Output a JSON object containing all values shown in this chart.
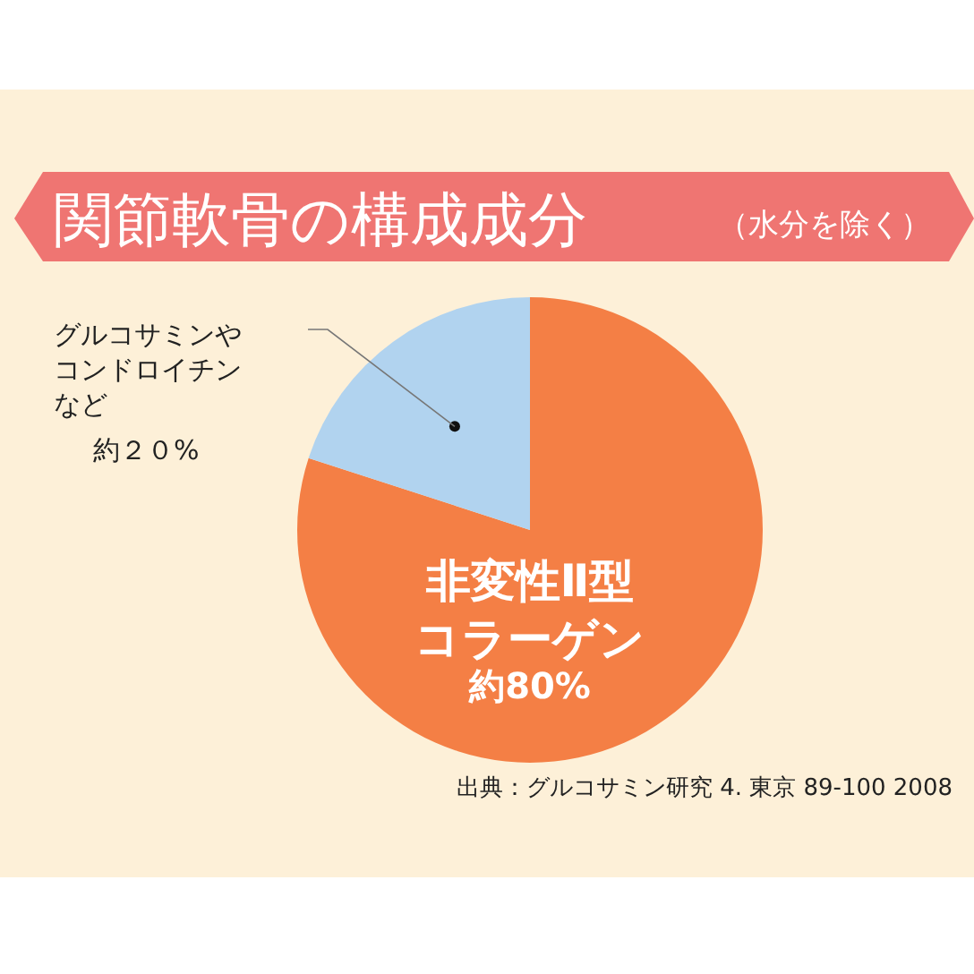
{
  "chart_data": {
    "type": "pie",
    "title": "関節軟骨の構成成分",
    "subtitle": "（水分を除く）",
    "categories": [
      "非変性Ⅱ型コラーゲン",
      "グルコサミンやコンドロイチンなど"
    ],
    "values": [
      80,
      20
    ],
    "value_labels": [
      "約80%",
      "約２０%"
    ],
    "colors": [
      "#f47f45",
      "#b1d3ef"
    ],
    "annotations": [
      "出典：グルコサミン研究 4. 東京 89-100 2008"
    ]
  }
}
